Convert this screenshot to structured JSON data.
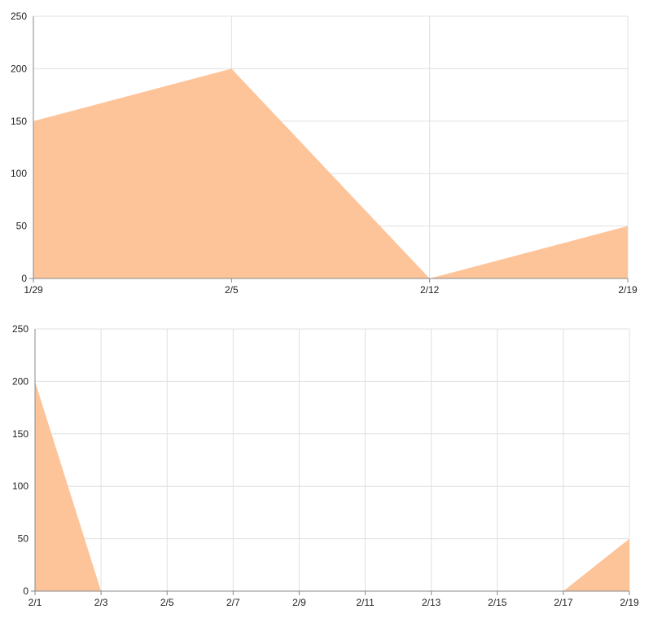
{
  "colors": {
    "area": "#fdc49a",
    "grid": "#e0e0e0",
    "axis": "#888888",
    "text": "#222222"
  },
  "chart_data": [
    {
      "type": "area",
      "title": "",
      "xlabel": "",
      "ylabel": "",
      "ylim": [
        0,
        250
      ],
      "yticks": [
        0,
        50,
        100,
        150,
        200,
        250
      ],
      "categories": [
        "1/29",
        "2/5",
        "2/12",
        "2/19"
      ],
      "values": [
        150,
        200,
        0,
        50
      ],
      "grid": true,
      "legend": "none"
    },
    {
      "type": "area",
      "title": "",
      "xlabel": "",
      "ylabel": "",
      "ylim": [
        0,
        250
      ],
      "yticks": [
        0,
        50,
        100,
        150,
        200,
        250
      ],
      "categories": [
        "2/1",
        "2/3",
        "2/5",
        "2/7",
        "2/9",
        "2/11",
        "2/13",
        "2/15",
        "2/17",
        "2/19"
      ],
      "values": [
        200,
        0,
        0,
        0,
        0,
        0,
        0,
        0,
        0,
        50
      ],
      "grid": true,
      "legend": "none"
    }
  ]
}
